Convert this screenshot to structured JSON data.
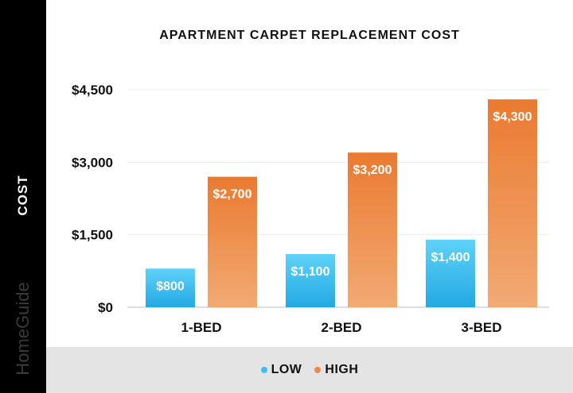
{
  "chart_data": {
    "type": "bar",
    "title": "APARTMENT CARPET REPLACEMENT COST",
    "ylabel": "COST",
    "xlabel": "",
    "categories": [
      "1-BED",
      "2-BED",
      "3-BED"
    ],
    "series": [
      {
        "name": "LOW",
        "values": [
          800,
          1100,
          1400
        ],
        "labels": [
          "$800",
          "$1,100",
          "$1,400"
        ],
        "color": "#3fbef0"
      },
      {
        "name": "HIGH",
        "values": [
          2700,
          3200,
          4300
        ],
        "labels": [
          "$2,700",
          "$3,200",
          "$4,300"
        ],
        "color": "#ee8a45"
      }
    ],
    "ylim": [
      0,
      4500
    ],
    "yticks": [
      0,
      1500,
      3000,
      4500
    ],
    "ytick_labels": [
      "$0",
      "$1,500",
      "$3,000",
      "$4,500"
    ],
    "grid": true,
    "legend_position": "bottom"
  },
  "brand": "HomeGuide",
  "colors": {
    "low_light": "#5fd2f8",
    "low_dark": "#22a9e3",
    "high_light": "#f2aa74",
    "high_dark": "#ea7a30",
    "side_band": "#000000",
    "legend_band": "#e4e4e4"
  }
}
